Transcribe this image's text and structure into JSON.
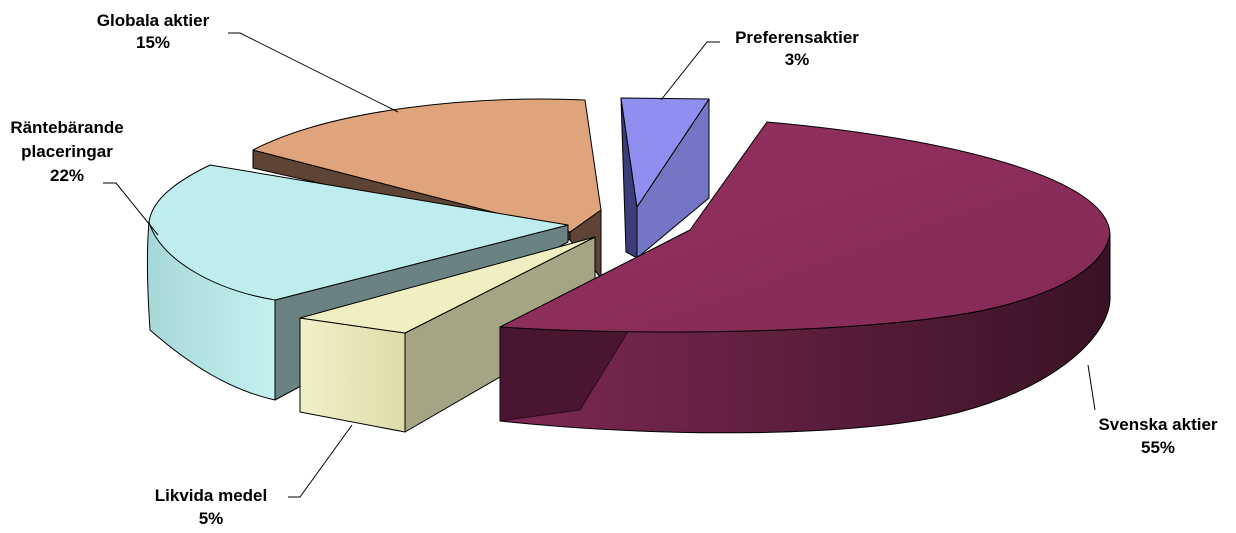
{
  "chart_data": {
    "type": "pie",
    "style": "3d-exploded",
    "title": "",
    "legend": "none",
    "unit": "%",
    "slices": [
      {
        "name": "Svenska aktier",
        "value": 55,
        "label": "55%",
        "top_color": "#8B2D5C",
        "side_color": "#5A1A3A"
      },
      {
        "name": "Likvida medel",
        "value": 5,
        "label": "5%",
        "top_color": "#EFEFC2",
        "side_color": "#A5A585"
      },
      {
        "name": "Räntebärande placeringar",
        "label_lines": [
          "Räntebärande",
          "placeringar"
        ],
        "value": 22,
        "label": "22%",
        "top_color": "#BFEDED",
        "side_color": "#6A8282"
      },
      {
        "name": "Globala aktier",
        "value": 15,
        "label": "15%",
        "top_color": "#E0A47C",
        "side_color": "#5E4434"
      },
      {
        "name": "Preferensaktier",
        "value": 3,
        "label": "3%",
        "top_color": "#8E8FEE",
        "side_color": "#6E70C0"
      }
    ]
  }
}
